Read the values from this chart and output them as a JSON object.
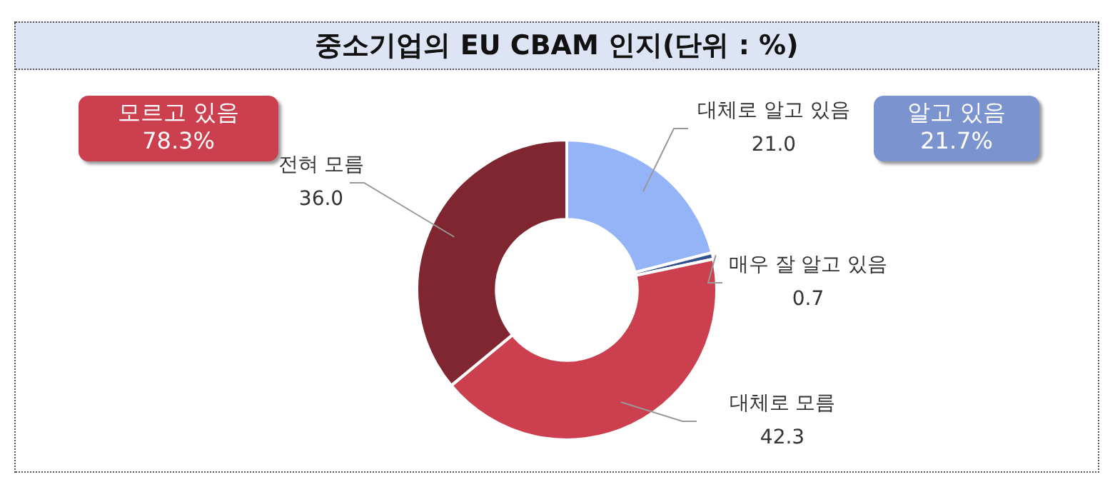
{
  "chart_data": {
    "type": "donut",
    "title": "중소기업의 EU CBAM 인지(단위 : %)",
    "categories": [
      "대체로 알고 있음",
      "매우 잘 알고 있음",
      "대체로 모름",
      "전혀 모름"
    ],
    "values": [
      21.0,
      0.7,
      42.3,
      36.0
    ],
    "colors": [
      "#95b3f7",
      "#2f4f8f",
      "#cc3f4e",
      "#7f2630"
    ],
    "value_labels": [
      "21.0",
      "0.7",
      "42.3",
      "36.0"
    ],
    "legend": false,
    "annotations": [
      "모르고 있음\n78.3%",
      "알고 있음\n21.7%"
    ]
  }
}
